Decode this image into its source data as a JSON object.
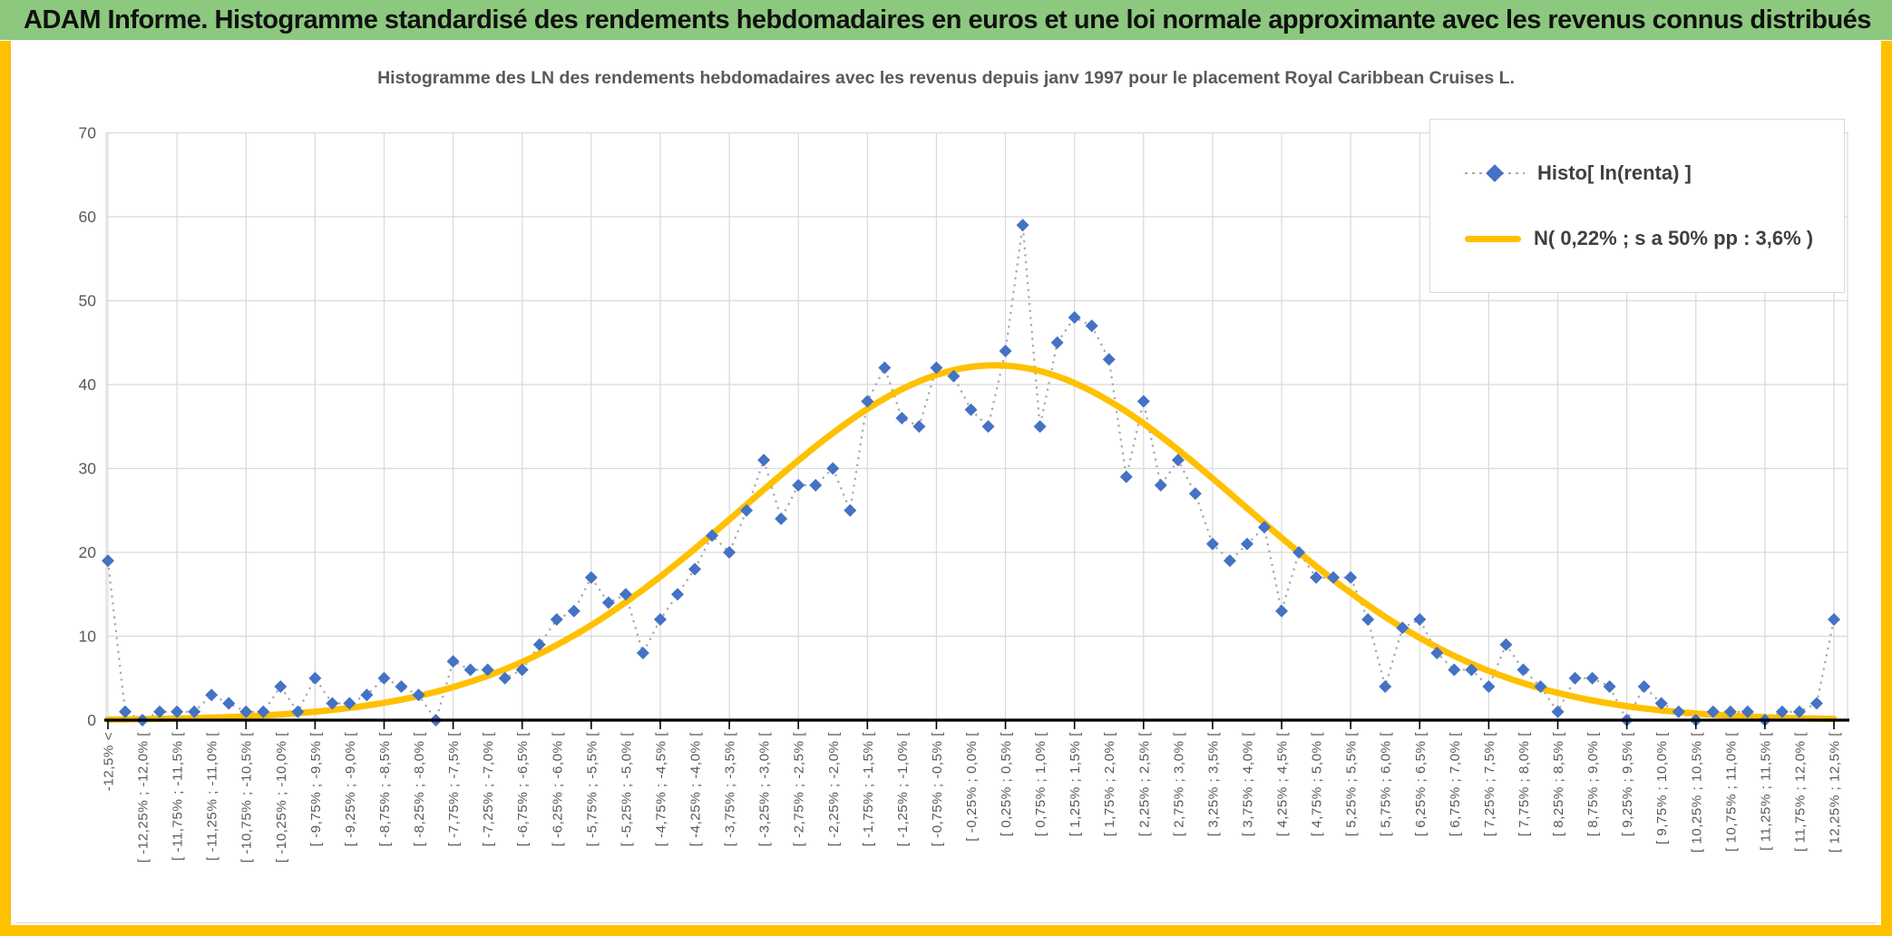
{
  "header": {
    "title": "ADAM Informe. Histogramme standardisé des rendements hebdomadaires en euros et une loi normale approximante avec les revenus connus distribués"
  },
  "colors": {
    "header_green": "#8CC87E",
    "frame_gold": "#FFC000",
    "histogram_blue": "#4472C4",
    "connector_gray": "#A6A6A6",
    "grid_gray": "#D9D9D9",
    "axis_text_gray": "#595959",
    "axis_black": "#000000"
  },
  "legend": {
    "histogram_label": "Histo[ ln(renta) ]",
    "normal_label": "N( 0,22% ; s a 50% pp : 3,6% )"
  },
  "chart_data": {
    "type": "line",
    "title": "Histogramme des LN des rendements hebdomadaires avec les revenus depuis janv 1997 pour le placement Royal Caribbean Cruises L.",
    "ylim": [
      0,
      70
    ],
    "y_ticks": [
      0,
      10,
      20,
      30,
      40,
      50,
      60,
      70
    ],
    "grid": true,
    "legend_position": "top-right",
    "x_bin_width_pct": 0.25,
    "x_tick_labels": [
      "-12,5% <",
      "[ -12,25% ; -12,0% [",
      "[ -11,75% ; -11,5% [",
      "[ -11,25% ; -11,0% [",
      "[ -10,75% ; -10,5% [",
      "[ -10,25% ; -10,0% [",
      "[ -9,75% ; -9,5% [",
      "[ -9,25% ; -9,0% [",
      "[ -8,75% ; -8,5% [",
      "[ -8,25% ; -8,0% [",
      "[ -7,75% ; -7,5% [",
      "[ -7,25% ; -7,0% [",
      "[ -6,75% ; -6,5% [",
      "[ -6,25% ; -6,0% [",
      "[ -5,75% ; -5,5% [",
      "[ -5,25% ; -5,0% [",
      "[ -4,75% ; -4,5% [",
      "[ -4,25% ; -4,0% [",
      "[ -3,75% ; -3,5% [",
      "[ -3,25% ; -3,0% [",
      "[ -2,75% ; -2,5% [",
      "[ -2,25% ; -2,0% [",
      "[ -1,75% ; -1,5% [",
      "[ -1,25% ; -1,0% [",
      "[ -0,75% ; -0,5% [",
      "[ -0,25% ; 0,0% [",
      "[ 0,25% ; 0,5% [",
      "[ 0,75% ; 1,0% [",
      "[ 1,25% ; 1,5% [",
      "[ 1,75% ; 2,0% [",
      "[ 2,25% ; 2,5% [",
      "[ 2,75% ; 3,0% [",
      "[ 3,25% ; 3,5% [",
      "[ 3,75% ; 4,0% [",
      "[ 4,25% ; 4,5% [",
      "[ 4,75% ; 5,0% [",
      "[ 5,25% ; 5,5% [",
      "[ 5,75% ; 6,0% [",
      "[ 6,25% ; 6,5% [",
      "[ 6,75% ; 7,0% [",
      "[ 7,25% ; 7,5% [",
      "[ 7,75% ; 8,0% [",
      "[ 8,25% ; 8,5% [",
      "[ 8,75% ; 9,0% [",
      "[ 9,25% ; 9,5% [",
      "[ 9,75% ; 10,0% [",
      "[ 10,25% ; 10,5% [",
      "[ 10,75% ; 11,0% [",
      "[ 11,25% ; 11,5% [",
      "[ 11,75% ; 12,0% [",
      "[ 12,25% ; 12,5% ["
    ],
    "series": [
      {
        "name": "Histo[ ln(renta) ]",
        "style": "scatter-diamond-dotted",
        "color": "#4472C4",
        "values": [
          19,
          1,
          0,
          1,
          1,
          1,
          3,
          2,
          1,
          1,
          4,
          1,
          5,
          2,
          2,
          3,
          5,
          4,
          3,
          0,
          7,
          6,
          6,
          5,
          6,
          9,
          12,
          13,
          17,
          14,
          15,
          8,
          12,
          15,
          18,
          22,
          20,
          25,
          31,
          24,
          28,
          28,
          30,
          25,
          38,
          42,
          36,
          35,
          42,
          41,
          37,
          35,
          44,
          59,
          35,
          45,
          48,
          47,
          43,
          29,
          38,
          28,
          31,
          27,
          21,
          19,
          21,
          23,
          13,
          20,
          17,
          17,
          17,
          12,
          4,
          11,
          12,
          8,
          6,
          6,
          4,
          9,
          6,
          4,
          1,
          5,
          5,
          4,
          0,
          4,
          2,
          1,
          0,
          1,
          1,
          1,
          0,
          1,
          1,
          2,
          12
        ]
      },
      {
        "name": "N( 0,22% ; s a 50% pp : 3,6% )",
        "style": "smooth-line",
        "color": "#FFC000",
        "mean_pct": 0.22,
        "sd_pct": 3.6,
        "peak": 42.3,
        "x_start_pct": -12.625
      }
    ]
  }
}
